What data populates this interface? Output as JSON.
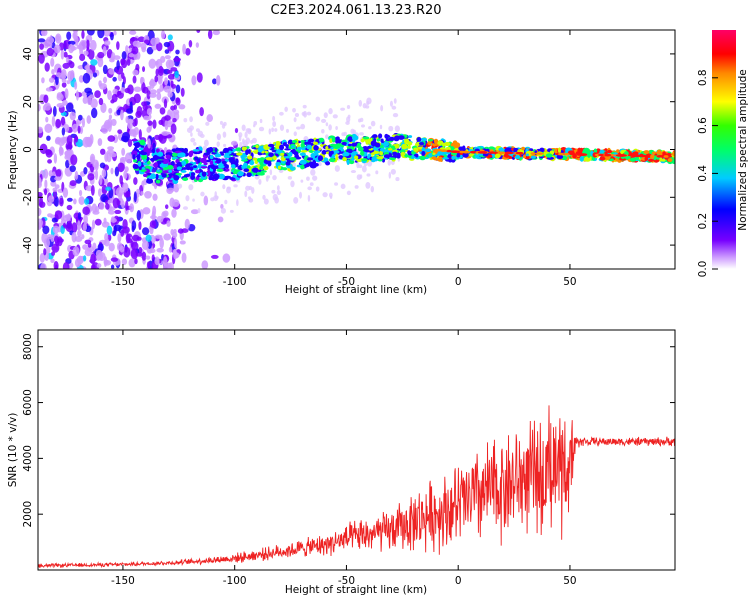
{
  "title": "C2E3.2024.061.13.23.R20",
  "chart_data": [
    {
      "type": "heatmap",
      "title": "C2E3.2024.061.13.23.R20",
      "xlabel": "Height of straight line (km)",
      "ylabel": "Frequency (Hz)",
      "xlim": [
        -188,
        97
      ],
      "ylim": [
        -50,
        50
      ],
      "xticks": [
        "-150",
        "-100",
        "-50",
        "0",
        "50"
      ],
      "xtick_values": [
        -150,
        -100,
        -50,
        0,
        50
      ],
      "yticks": [
        "-40",
        "-20",
        "0",
        "20",
        "40"
      ],
      "ytick_values": [
        -40,
        -20,
        0,
        20,
        40
      ],
      "colorbar": {
        "label": "Normalized spectral amplitude",
        "ticks": [
          "0.0",
          "0.2",
          "0.4",
          "0.6",
          "0.8"
        ],
        "tick_values": [
          0.0,
          0.2,
          0.4,
          0.6,
          0.8
        ],
        "range": [
          0,
          1
        ],
        "colormap": "rainbow (violet-blue-cyan-green-yellow-red-magenta)"
      },
      "description_points": {
        "noise_region_x": [
          -188,
          -125
        ],
        "trace_centre_freq_hz": [
          {
            "x": -140,
            "f": -7
          },
          {
            "x": -100,
            "f": -6
          },
          {
            "x": -80,
            "f": -3
          },
          {
            "x": -50,
            "f": 0
          },
          {
            "x": -25,
            "f": 1
          },
          {
            "x": 0,
            "f": -1
          },
          {
            "x": 50,
            "f": -2
          },
          {
            "x": 97,
            "f": -3
          }
        ]
      }
    },
    {
      "type": "line",
      "xlabel": "Height of straight line (km)",
      "ylabel": "SNR (10 * v/v)",
      "xlim": [
        -188,
        97
      ],
      "ylim": [
        0,
        8600
      ],
      "xticks": [
        "-150",
        "-100",
        "-50",
        "0",
        "50"
      ],
      "xtick_values": [
        -150,
        -100,
        -50,
        0,
        50
      ],
      "yticks": [
        "2000",
        "4000",
        "6000",
        "8000"
      ],
      "ytick_values": [
        2000,
        4000,
        6000,
        8000
      ],
      "series": [
        {
          "name": "SNR",
          "color": "#ee2222",
          "envelope_x": [
            -188,
            -150,
            -125,
            -110,
            -100,
            -80,
            -60,
            -45,
            -30,
            -15,
            0,
            10,
            20,
            30,
            40,
            45,
            50,
            53,
            60,
            80,
            97
          ],
          "envelope_mean": [
            150,
            200,
            270,
            350,
            420,
            650,
            900,
            1200,
            1400,
            1900,
            2300,
            2700,
            3000,
            3300,
            3400,
            3600,
            3700,
            4600,
            4600,
            4600,
            4600
          ],
          "envelope_amp": [
            80,
            80,
            100,
            150,
            200,
            300,
            450,
            700,
            900,
            1400,
            1800,
            2100,
            2300,
            2300,
            2400,
            2600,
            2800,
            250,
            180,
            180,
            200
          ]
        }
      ]
    }
  ]
}
